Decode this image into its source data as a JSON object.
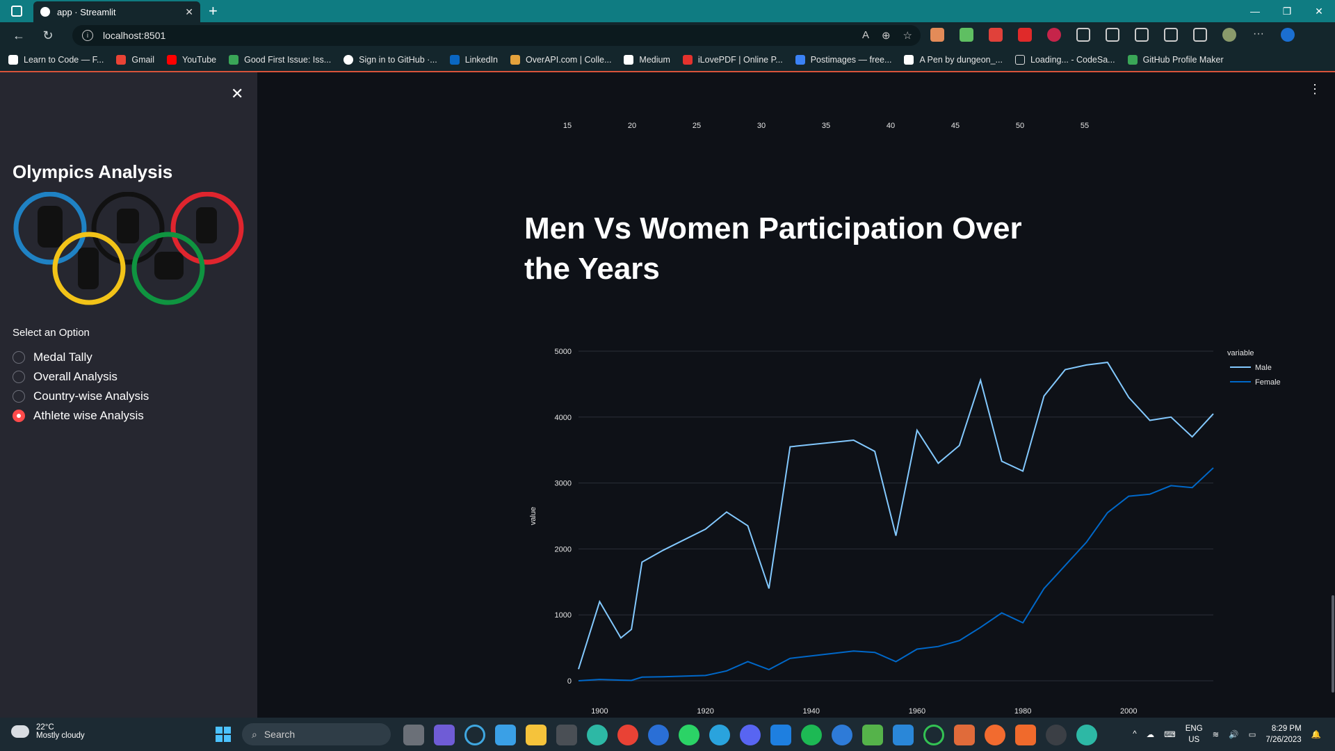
{
  "browser": {
    "tab_title": "app · Streamlit",
    "url": "localhost:8501",
    "bookmarks": [
      "Learn to Code — F...",
      "Gmail",
      "YouTube",
      "Good First Issue: Iss...",
      "Sign in to GitHub ·...",
      "LinkedIn",
      "OverAPI.com | Colle...",
      "Medium",
      "iLovePDF | Online P...",
      "Postimages — free...",
      "A Pen by dungeon_...",
      "Loading... - CodeSa...",
      "GitHub Profile Maker"
    ]
  },
  "sidebar": {
    "title": "Olympics Analysis",
    "select_label": "Select an Option",
    "options": [
      "Medal Tally",
      "Overall Analysis",
      "Country-wise Analysis",
      "Athlete wise Analysis"
    ],
    "selected_index": 3
  },
  "main": {
    "heading": "Men Vs Women Participation Over the Years",
    "top_axis_ticks": [
      "15",
      "20",
      "25",
      "30",
      "35",
      "40",
      "45",
      "50",
      "55"
    ]
  },
  "chart_data": {
    "type": "line",
    "ylabel": "value",
    "xlabel": "",
    "ylim": [
      0,
      5000
    ],
    "xlim": [
      1896,
      2016
    ],
    "x_ticks": [
      1900,
      1920,
      1940,
      1960,
      1980,
      2000
    ],
    "y_ticks": [
      0,
      1000,
      2000,
      3000,
      4000,
      5000
    ],
    "legend_title": "variable",
    "legend_position": "top-right",
    "series": [
      {
        "name": "Male",
        "color": "#83c9ff",
        "points": [
          [
            1896,
            176
          ],
          [
            1900,
            1200
          ],
          [
            1904,
            650
          ],
          [
            1906,
            780
          ],
          [
            1908,
            1800
          ],
          [
            1912,
            1980
          ],
          [
            1920,
            2300
          ],
          [
            1924,
            2560
          ],
          [
            1928,
            2350
          ],
          [
            1932,
            1400
          ],
          [
            1936,
            3550
          ],
          [
            1948,
            3650
          ],
          [
            1952,
            3480
          ],
          [
            1956,
            2200
          ],
          [
            1960,
            3800
          ],
          [
            1964,
            3300
          ],
          [
            1968,
            3570
          ],
          [
            1972,
            4560
          ],
          [
            1976,
            3330
          ],
          [
            1980,
            3180
          ],
          [
            1984,
            4320
          ],
          [
            1988,
            4720
          ],
          [
            1992,
            4790
          ],
          [
            1996,
            4830
          ],
          [
            2000,
            4300
          ],
          [
            2004,
            3950
          ],
          [
            2008,
            4000
          ],
          [
            2012,
            3700
          ],
          [
            2016,
            4050
          ]
        ]
      },
      {
        "name": "Female",
        "color": "#0068c9",
        "points": [
          [
            1896,
            0
          ],
          [
            1900,
            20
          ],
          [
            1904,
            10
          ],
          [
            1906,
            5
          ],
          [
            1908,
            55
          ],
          [
            1912,
            60
          ],
          [
            1920,
            80
          ],
          [
            1924,
            150
          ],
          [
            1928,
            290
          ],
          [
            1932,
            170
          ],
          [
            1936,
            340
          ],
          [
            1948,
            450
          ],
          [
            1952,
            430
          ],
          [
            1956,
            290
          ],
          [
            1960,
            480
          ],
          [
            1964,
            520
          ],
          [
            1968,
            610
          ],
          [
            1972,
            810
          ],
          [
            1976,
            1030
          ],
          [
            1980,
            880
          ],
          [
            1984,
            1400
          ],
          [
            1988,
            1750
          ],
          [
            1992,
            2100
          ],
          [
            1996,
            2550
          ],
          [
            2000,
            2800
          ],
          [
            2004,
            2830
          ],
          [
            2008,
            2960
          ],
          [
            2012,
            2930
          ],
          [
            2016,
            3230
          ]
        ]
      }
    ]
  },
  "taskbar": {
    "temperature": "22°C",
    "weather": "Mostly cloudy",
    "search_placeholder": "Search",
    "lang": "ENG",
    "region": "US",
    "time": "8:29 PM",
    "date": "7/26/2023"
  }
}
